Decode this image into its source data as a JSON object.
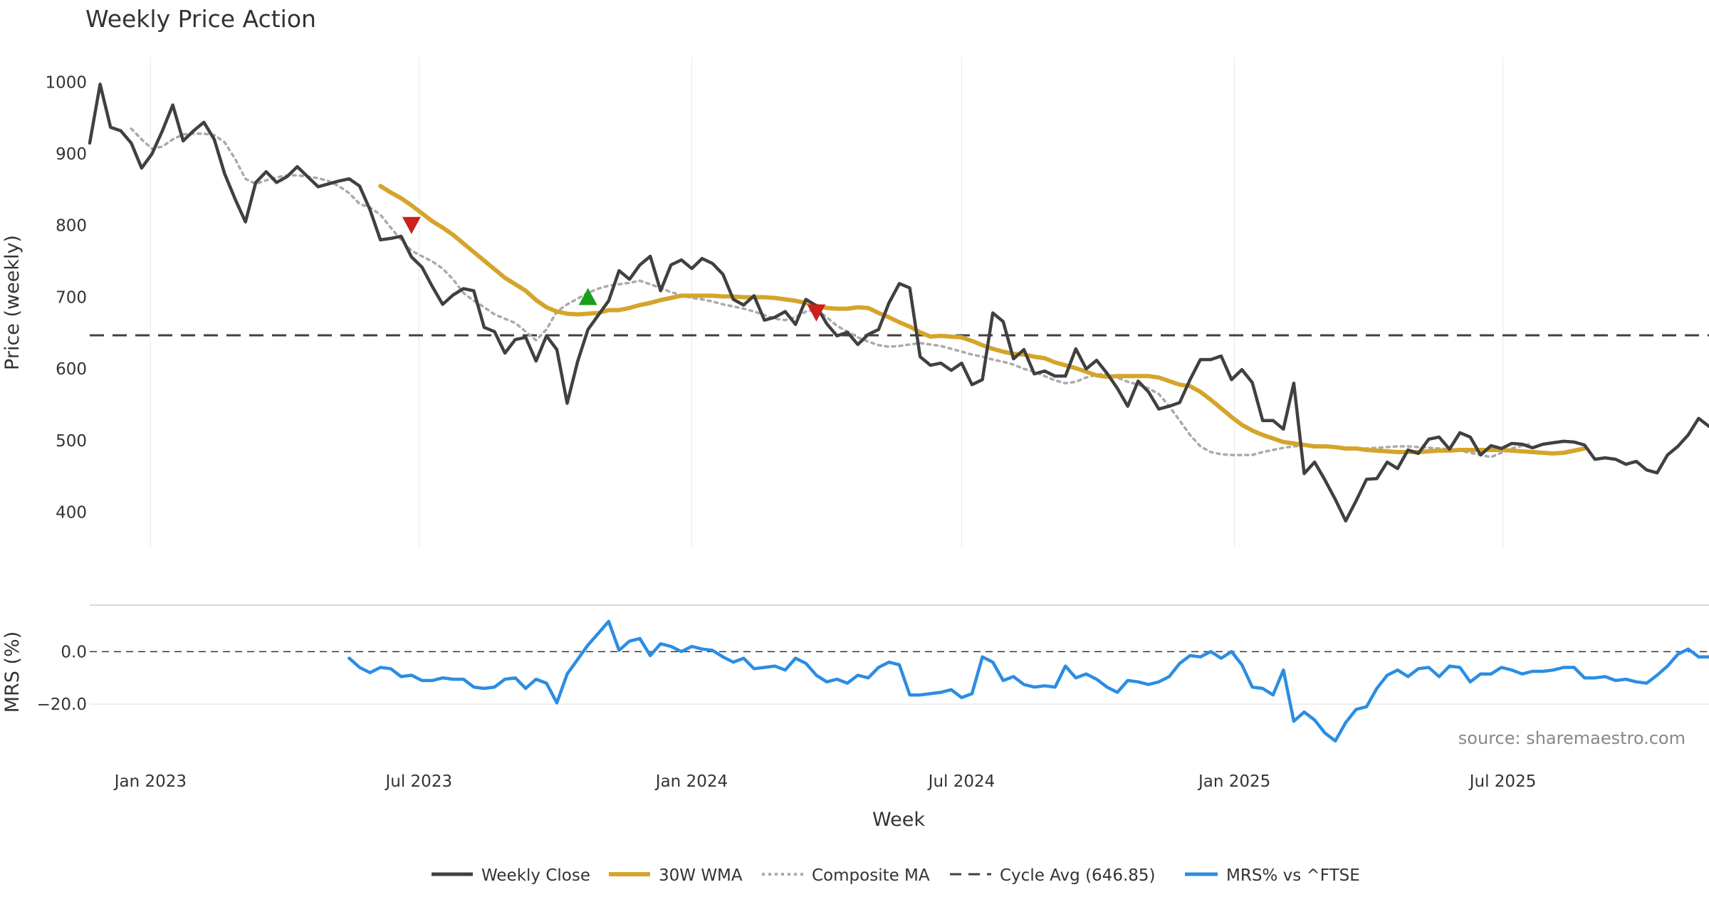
{
  "colors": {
    "close": "#404040",
    "wma": "#d4a52a",
    "composite": "#aaaaaa",
    "cycle": "#404040",
    "mrs": "#2b8de3",
    "buy": "#1aa01a",
    "sell": "#cc1f1f"
  },
  "chart_data": {
    "type": "line",
    "title": "Weekly Price Action",
    "xlabel": "Week",
    "source": "source: sharemaestro.com",
    "x_range": [
      "2022-11-21",
      "2025-11-17"
    ],
    "x_ticks": [
      {
        "date": "2023-01-01",
        "label": "Jan 2023"
      },
      {
        "date": "2023-07-01",
        "label": "Jul 2023"
      },
      {
        "date": "2024-01-01",
        "label": "Jan 2024"
      },
      {
        "date": "2024-07-01",
        "label": "Jul 2024"
      },
      {
        "date": "2025-01-01",
        "label": "Jan 2025"
      },
      {
        "date": "2025-07-01",
        "label": "Jul 2025"
      }
    ],
    "price_panel": {
      "ylabel": "Price (weekly)",
      "ylim": [
        352,
        1035
      ],
      "y_ticks": [
        "400",
        "500",
        "600",
        "700",
        "800",
        "900",
        "1000"
      ],
      "start": "2022-11-21",
      "weekly_close": [
        915,
        997,
        937,
        932,
        915,
        880,
        900,
        932,
        968,
        918,
        932,
        944,
        920,
        872,
        837,
        805,
        860,
        875,
        860,
        868,
        882,
        868,
        854,
        858,
        862,
        865,
        855,
        822,
        780,
        782,
        785,
        756,
        742,
        715,
        690,
        703,
        712,
        709,
        658,
        652,
        622,
        641,
        644,
        611,
        646,
        627,
        552,
        610,
        655,
        675,
        695,
        737,
        725,
        745,
        757,
        709,
        745,
        752,
        740,
        754,
        747,
        732,
        697,
        689,
        702,
        668,
        672,
        680,
        662,
        697,
        688,
        663,
        646,
        651,
        634,
        648,
        655,
        692,
        719,
        713,
        617,
        605,
        608,
        598,
        608,
        578,
        585,
        678,
        666,
        614,
        627,
        593,
        597,
        590,
        590,
        628,
        600,
        612,
        594,
        573,
        548,
        583,
        568,
        544,
        548,
        553,
        585,
        613,
        613,
        618,
        585,
        599,
        581,
        528,
        528,
        516,
        580,
        454,
        470,
        445,
        418,
        388,
        416,
        446,
        447,
        470,
        461,
        487,
        482,
        502,
        505,
        488,
        511,
        505,
        480,
        493,
        489,
        496,
        495,
        490,
        495,
        497,
        499,
        498,
        494,
        474,
        476,
        474,
        467,
        471,
        459,
        455,
        480,
        492,
        508,
        531,
        520,
        516
      ],
      "wma_start": "2023-06-05",
      "wma_30": [
        855,
        846,
        838,
        828,
        817,
        806,
        797,
        787,
        775,
        763,
        751,
        739,
        727,
        718,
        709,
        696,
        686,
        680,
        677,
        676,
        677,
        678,
        682,
        682,
        685,
        689,
        692,
        696,
        699,
        702,
        702,
        702,
        702,
        701,
        701,
        700,
        700,
        700,
        699,
        697,
        695,
        692,
        688,
        685,
        684,
        684,
        686,
        685,
        678,
        672,
        665,
        659,
        651,
        645,
        646,
        645,
        644,
        639,
        633,
        628,
        624,
        621,
        620,
        617,
        615,
        609,
        605,
        601,
        596,
        591,
        589,
        590,
        590,
        590,
        590,
        588,
        583,
        578,
        576,
        568,
        557,
        545,
        533,
        522,
        514,
        508,
        503,
        498,
        496,
        494,
        492,
        492,
        491,
        489,
        489,
        487,
        486,
        485,
        484,
        484,
        484,
        485,
        486,
        486,
        487,
        487,
        487,
        487,
        487,
        486,
        485,
        484,
        483,
        482,
        483,
        486,
        489
      ],
      "composite_start": "2022-12-19",
      "composite_ma": [
        935,
        920,
        907,
        910,
        920,
        927,
        928,
        928,
        926,
        916,
        893,
        865,
        858,
        863,
        867,
        870,
        870,
        868,
        866,
        862,
        855,
        845,
        830,
        825,
        815,
        797,
        780,
        765,
        757,
        750,
        740,
        725,
        706,
        695,
        686,
        676,
        670,
        664,
        652,
        640,
        655,
        680,
        690,
        698,
        706,
        712,
        716,
        718,
        720,
        723,
        718,
        713,
        707,
        703,
        699,
        697,
        694,
        690,
        687,
        684,
        680,
        675,
        670,
        668,
        672,
        680,
        683,
        672,
        660,
        652,
        644,
        638,
        633,
        631,
        632,
        634,
        636,
        634,
        632,
        628,
        624,
        620,
        617,
        613,
        610,
        606,
        600,
        596,
        590,
        584,
        580,
        582,
        588,
        592,
        593,
        588,
        582,
        578,
        573,
        565,
        548,
        528,
        508,
        492,
        484,
        481,
        480,
        480,
        480,
        484,
        487,
        490,
        492,
        493,
        492,
        491,
        490,
        490,
        489,
        489,
        490,
        491,
        492,
        492,
        491,
        490,
        489,
        488,
        486,
        483,
        480,
        477,
        483,
        489,
        493,
        496
      ],
      "cycle_avg": 646.85,
      "signals": [
        {
          "type": "sell",
          "date": "2023-06-26",
          "y": 800
        },
        {
          "type": "buy",
          "date": "2023-10-23",
          "y": 701
        },
        {
          "type": "sell",
          "date": "2024-03-25",
          "y": 678
        }
      ]
    },
    "mrs_panel": {
      "ylabel": "MRS (%)",
      "ylim": [
        -36.5,
        15
      ],
      "y_ticks": [
        {
          "value": 0,
          "label": "0.0"
        },
        {
          "value": -20,
          "label": "−20.0"
        }
      ],
      "start": "2023-05-15",
      "mrs": [
        -2.5,
        -6,
        -8,
        -6,
        -6.5,
        -9.5,
        -9,
        -11,
        -11,
        -10,
        -10.5,
        -10.5,
        -13.5,
        -14,
        -13.5,
        -10.5,
        -10,
        -14,
        -10.5,
        -12,
        -19.5,
        -8.5,
        -3,
        2.5,
        7,
        11.5,
        0.5,
        4,
        5,
        -1.5,
        3,
        2,
        0,
        2,
        1,
        0.5,
        -2,
        -4,
        -2.5,
        -6.5,
        -6,
        -5.5,
        -7,
        -2.5,
        -4.5,
        -9,
        -11.5,
        -10.5,
        -12,
        -9,
        -10,
        -6,
        -4,
        -5,
        -16.5,
        -16.5,
        -16,
        -15.5,
        -14.5,
        -17.5,
        -16,
        -2,
        -4,
        -11,
        -9.5,
        -12.5,
        -13.5,
        -13,
        -13.5,
        -5.5,
        -10,
        -8.5,
        -10.5,
        -13.5,
        -15.5,
        -11,
        -11.5,
        -12.5,
        -11.5,
        -9.5,
        -4.5,
        -1.5,
        -2,
        0,
        -2.5,
        0,
        -5,
        -13.5,
        -14,
        -16.5,
        -7,
        -26.5,
        -23,
        -26,
        -31,
        -34,
        -27,
        -22,
        -21,
        -14,
        -9,
        -7,
        -9.5,
        -6.5,
        -6,
        -9.5,
        -5.5,
        -6,
        -11.5,
        -8.5,
        -8.5,
        -6,
        -7,
        -8.5,
        -7.5,
        -7.5,
        -7,
        -6,
        -6,
        -10,
        -10,
        -9.5,
        -11,
        -10.5,
        -11.5,
        -12,
        -9,
        -5.5,
        -1,
        1,
        -2,
        -2
      ]
    },
    "legend": [
      "Weekly Close",
      "30W WMA",
      "Composite MA",
      "Cycle Avg (646.85)",
      "MRS% vs ^FTSE"
    ]
  }
}
